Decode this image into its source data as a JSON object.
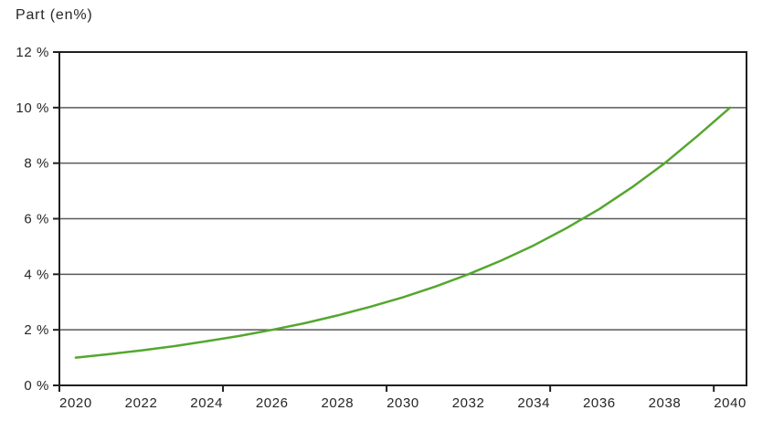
{
  "title": "Part (en%)",
  "colors": {
    "line": "#54a72e",
    "grid": "#595959",
    "axis": "#1f1f1f",
    "text": "#262626",
    "background": "#ffffff"
  },
  "chart_data": {
    "type": "line",
    "title": "Part (en%)",
    "ylabel": "Part (en%)",
    "xlabel": "",
    "x": [
      2020,
      2021,
      2022,
      2023,
      2024,
      2025,
      2026,
      2027,
      2028,
      2029,
      2030,
      2031,
      2032,
      2033,
      2034,
      2035,
      2036,
      2037,
      2038,
      2039,
      2040
    ],
    "series": [
      {
        "name": "Part (en%)",
        "values": [
          1.0,
          1.12,
          1.26,
          1.41,
          1.59,
          1.78,
          2.0,
          2.24,
          2.52,
          2.83,
          3.17,
          3.56,
          4.0,
          4.49,
          5.04,
          5.66,
          6.35,
          7.13,
          8.0,
          8.98,
          10.0
        ]
      }
    ],
    "ylim": [
      0,
      12
    ],
    "y_ticks": [
      0,
      2,
      4,
      6,
      8,
      10,
      12
    ],
    "y_tick_labels": [
      "0 %",
      "2 %",
      "4 %",
      "6 %",
      "8 %",
      "10 %",
      "12 %"
    ],
    "x_label_years": [
      2020,
      2022,
      2024,
      2026,
      2028,
      2030,
      2032,
      2034,
      2036,
      2038,
      2040
    ],
    "x_tick_boundary_indices": [
      0,
      5,
      10,
      15,
      20
    ],
    "grid": "horizontal",
    "legend_position": "none"
  }
}
